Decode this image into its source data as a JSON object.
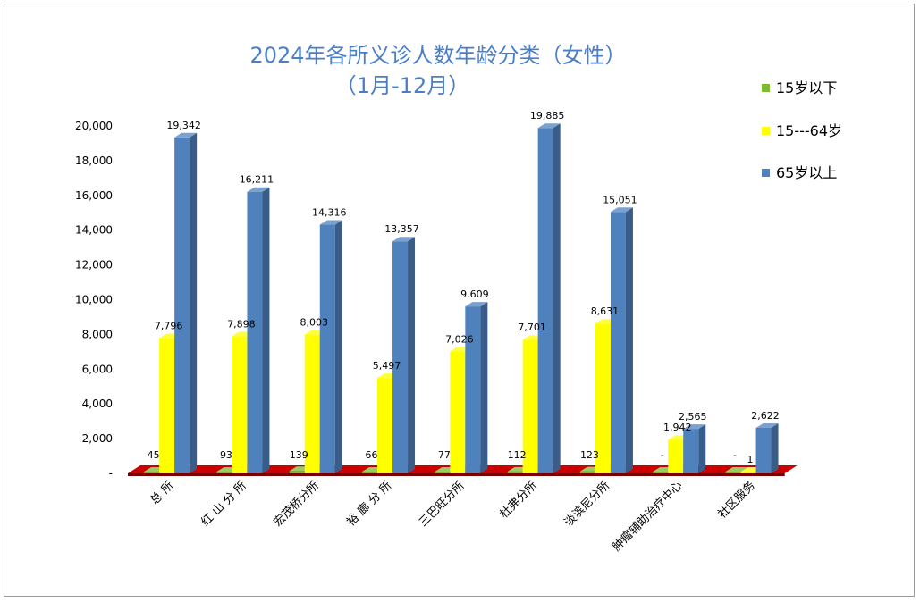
{
  "chart_data": {
    "type": "bar",
    "title": "2024年各所义诊人数年龄分类（女性）",
    "subtitle": "（1月-12月）",
    "categories": [
      "总 所",
      "红 山 分 所",
      "宏茂桥分所",
      "裕 廊 分 所",
      "三巴旺分所",
      "杜弗分所",
      "淡滨尼分所",
      "肿瘤辅助治疗中心",
      "社区服务"
    ],
    "series": [
      {
        "name": "15岁以下",
        "values": [
          45,
          93,
          139,
          66,
          77,
          112,
          123,
          0,
          0
        ],
        "labels": [
          "45",
          "93",
          "139",
          "66",
          "77",
          "112",
          "123",
          "-",
          "-"
        ],
        "color": "#7cba2f"
      },
      {
        "name": "15---64岁",
        "values": [
          7796,
          7898,
          8003,
          5497,
          7026,
          7701,
          8631,
          1942,
          1
        ],
        "labels": [
          "7,796",
          "7,898",
          "8,003",
          "5,497",
          "7,026",
          "7,701",
          "8,631",
          "1,942",
          "1"
        ],
        "color": "#ffff00"
      },
      {
        "name": "65岁以上",
        "values": [
          19342,
          16211,
          14316,
          13357,
          9609,
          19885,
          15051,
          2565,
          2622
        ],
        "labels": [
          "19,342",
          "16,211",
          "14,316",
          "13,357",
          "9,609",
          "19,885",
          "15,051",
          "2,565",
          "2,622"
        ],
        "color": "#4f81bd"
      }
    ],
    "yticks": [
      "-",
      "2,000",
      "4,000",
      "6,000",
      "8,000",
      "10,000",
      "12,000",
      "14,000",
      "16,000",
      "18,000",
      "20,000"
    ],
    "ylim": [
      0,
      20000
    ],
    "grid": false,
    "legend": "right",
    "floor_color": "#cc0000"
  }
}
